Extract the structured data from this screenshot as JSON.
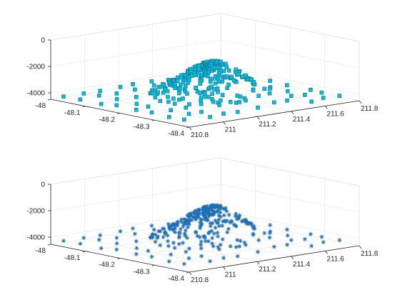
{
  "colors": {
    "marker_face_top": "#00c2d6",
    "marker_edge_top": "#1f6f9a",
    "marker_bottom": "#1f6fb4"
  },
  "chart_data": [
    {
      "type": "scatter3d",
      "marker": "filled-square",
      "x_label_ticks": [
        "-48",
        "-48.1",
        "-48.2",
        "-48.3",
        "-48.4"
      ],
      "y_label_ticks": [
        "210.8",
        "211",
        "211.2",
        "211.4",
        "211.6",
        "211.8"
      ],
      "z_label_ticks": [
        "0",
        "-2000",
        "-4000"
      ],
      "xlim": [
        -48.4,
        -48.0
      ],
      "ylim": [
        210.8,
        211.8
      ],
      "zlim": [
        -4500,
        0
      ],
      "grid": true,
      "peak": {
        "lat": -48.22,
        "lon": 211.42,
        "depth_min": -1500,
        "depth_base": -4200
      }
    },
    {
      "type": "scatter3d",
      "marker": "asterisk",
      "x_label_ticks": [
        "-48",
        "-48.1",
        "-48.2",
        "-48.3",
        "-48.4"
      ],
      "y_label_ticks": [
        "210.8",
        "211",
        "211.2",
        "211.4",
        "211.6",
        "211.8"
      ],
      "z_label_ticks": [
        "0",
        "-2000",
        "-4000"
      ],
      "xlim": [
        -48.4,
        -48.0
      ],
      "ylim": [
        210.8,
        211.8
      ],
      "zlim": [
        -4500,
        0
      ],
      "grid": true,
      "peak": {
        "lat": -48.22,
        "lon": 211.42,
        "depth_min": -1500,
        "depth_base": -4200
      }
    }
  ]
}
